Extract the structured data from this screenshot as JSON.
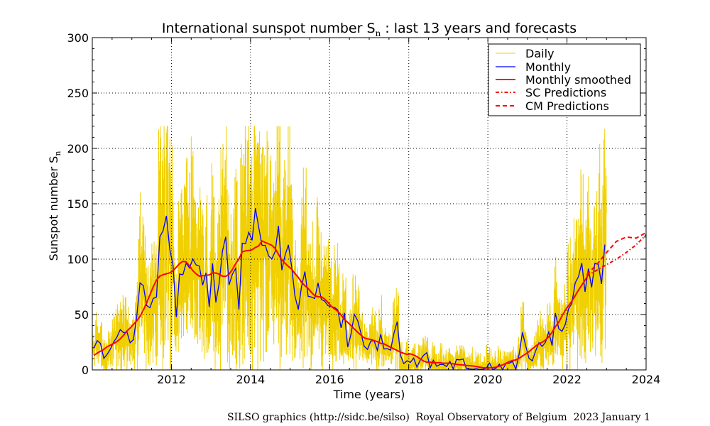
{
  "chart_data": {
    "type": "line",
    "title": "International sunspot number Sₙ : last 13 years and forecasts",
    "title_parts": {
      "before": "International sunspot number S",
      "sub": "n",
      "after": " : last 13 years and forecasts"
    },
    "xlabel": "Time (years)",
    "ylabel": "Sunspot number Sₙ",
    "ylabel_parts": {
      "main": "Sunspot number S",
      "sub": "n"
    },
    "xlim": [
      2010,
      2024
    ],
    "ylim": [
      0,
      300
    ],
    "xticks": [
      "2012",
      "2014",
      "2016",
      "2018",
      "2020",
      "2022",
      "2024"
    ],
    "yticks": [
      "0",
      "50",
      "100",
      "150",
      "200",
      "250",
      "300"
    ],
    "grid": true,
    "legend_position": "top-right",
    "colors": {
      "daily": "#f0d000",
      "monthly": "#0000ff",
      "smoothed": "#ff0000",
      "predictions": "#ff0000"
    },
    "series": [
      {
        "name": "Daily",
        "style": "thin",
        "note_values": "daily scatter around monthly mean"
      },
      {
        "name": "Monthly",
        "style": "solid",
        "x_start": 2010.04,
        "x_step_months": 1,
        "values": [
          19.6,
          26.5,
          24.0,
          10.4,
          13.9,
          18.8,
          25.2,
          29.6,
          36.4,
          33.6,
          34.4,
          24.5,
          27.3,
          48.3,
          78.6,
          76.1,
          58.2,
          56.1,
          64.5,
          65.8,
          120.1,
          125.7,
          139.1,
          109.3,
          94.4,
          47.8,
          86.6,
          85.9,
          96.5,
          92.0,
          100.1,
          94.8,
          93.7,
          76.5,
          87.6,
          56.8,
          96.1,
          60.9,
          78.3,
          107.3,
          120.2,
          76.7,
          86.2,
          91.8,
          54.5,
          114.4,
          113.9,
          124.2,
          117.0,
          146.1,
          128.7,
          112.5,
          112.5,
          102.9,
          100.2,
          106.9,
          130.0,
          90.0,
          103.6,
          112.9,
          93.0,
          66.7,
          54.5,
          75.3,
          88.8,
          66.5,
          65.8,
          64.4,
          78.6,
          63.6,
          62.2,
          58.0,
          57.0,
          56.4,
          54.1,
          37.9,
          51.5,
          20.5,
          32.4,
          50.2,
          44.6,
          33.4,
          21.4,
          18.5,
          26.1,
          26.4,
          17.7,
          32.3,
          18.9,
          19.2,
          17.8,
          32.6,
          43.6,
          13.2,
          5.7,
          8.2,
          6.8,
          10.7,
          2.5,
          8.9,
          13.1,
          15.6,
          1.6,
          8.7,
          3.3,
          4.9,
          4.9,
          3.1,
          7.7,
          0.8,
          9.4,
          9.1,
          9.9,
          1.2,
          0.9,
          0.5,
          1.1,
          0.4,
          0.5,
          1.5,
          6.2,
          0.2,
          1.5,
          5.2,
          0.2,
          5.8,
          6.1,
          7.5,
          0.6,
          14.4,
          34.0,
          21.8,
          10.4,
          8.2,
          17.2,
          24.5,
          21.2,
          25.0,
          34.3,
          22.0,
          51.3,
          37.4,
          34.8,
          41.1,
          55.3,
          59.9,
          78.5,
          84.1,
          96.5,
          70.5,
          91.4,
          74.6,
          96.3,
          95.5,
          77.6,
          113.1
        ]
      },
      {
        "name": "Monthly smoothed",
        "style": "thick",
        "x_start": 2010.04,
        "x_step_months": 1,
        "values": [
          13.1,
          15.2,
          16.8,
          18.5,
          20.9,
          22.4,
          23.8,
          25.6,
          28.1,
          31.3,
          35.0,
          37.8,
          41.0,
          44.3,
          48.4,
          53.9,
          60.5,
          67.9,
          75.0,
          81.1,
          84.6,
          86.0,
          86.8,
          87.6,
          89.5,
          92.7,
          96.0,
          98.0,
          97.5,
          93.9,
          89.6,
          86.7,
          84.6,
          85.0,
          85.3,
          85.8,
          87.5,
          87.5,
          86.4,
          84.6,
          84.4,
          86.4,
          90.5,
          95.9,
          100.2,
          106.6,
          107.5,
          107.8,
          108.5,
          110.5,
          112.0,
          116.4,
          115.0,
          113.8,
          112.5,
          109.6,
          104.4,
          99.1,
          96.2,
          93.4,
          91.0,
          87.0,
          83.5,
          79.1,
          76.0,
          73.5,
          70.0,
          67.0,
          66.0,
          66.0,
          64.0,
          61.0,
          57.5,
          55.0,
          53.0,
          49.5,
          45.5,
          43.0,
          40.0,
          37.0,
          34.0,
          31.5,
          29.0,
          28.0,
          27.5,
          26.5,
          25.5,
          24.0,
          23.5,
          22.0,
          20.5,
          19.0,
          17.5,
          16.0,
          15.0,
          14.0,
          14.5,
          13.5,
          12.0,
          10.0,
          8.0,
          7.0,
          7.0,
          6.5,
          6.5,
          6.5,
          6.0,
          6.0,
          6.0,
          5.5,
          5.0,
          4.7,
          4.5,
          4.0,
          3.8,
          3.5,
          3.0,
          2.5,
          2.0,
          1.8,
          1.8,
          2.0,
          2.5,
          3.5,
          4.5,
          6.0,
          7.5,
          8.5,
          9.0,
          10.5,
          12.5,
          14.5,
          16.5,
          19.0,
          21.5,
          23.5,
          25.0,
          27.0,
          30.0,
          34.0,
          39.0,
          43.0,
          48.5,
          54.0,
          58.0,
          62.0,
          67.0,
          72.0,
          76.5,
          81.0,
          86.0
        ]
      },
      {
        "name": "SC Predictions",
        "style": "dash-dot",
        "x": [
          2022.5,
          2022.75,
          2023.0,
          2023.25,
          2023.5,
          2023.75,
          2024.0
        ],
        "values": [
          85,
          90,
          95,
          100,
          106,
          113,
          122
        ]
      },
      {
        "name": "CM Predictions",
        "style": "dashed",
        "x": [
          2022.5,
          2022.75,
          2023.0,
          2023.25,
          2023.5,
          2023.75,
          2024.0
        ],
        "values": [
          86,
          95,
          106,
          116,
          120,
          119,
          124
        ]
      }
    ]
  },
  "footer": {
    "credit": "SILSO graphics (http://sidc.be/silso)  Royal Observatory of Belgium  2023 January 1"
  }
}
